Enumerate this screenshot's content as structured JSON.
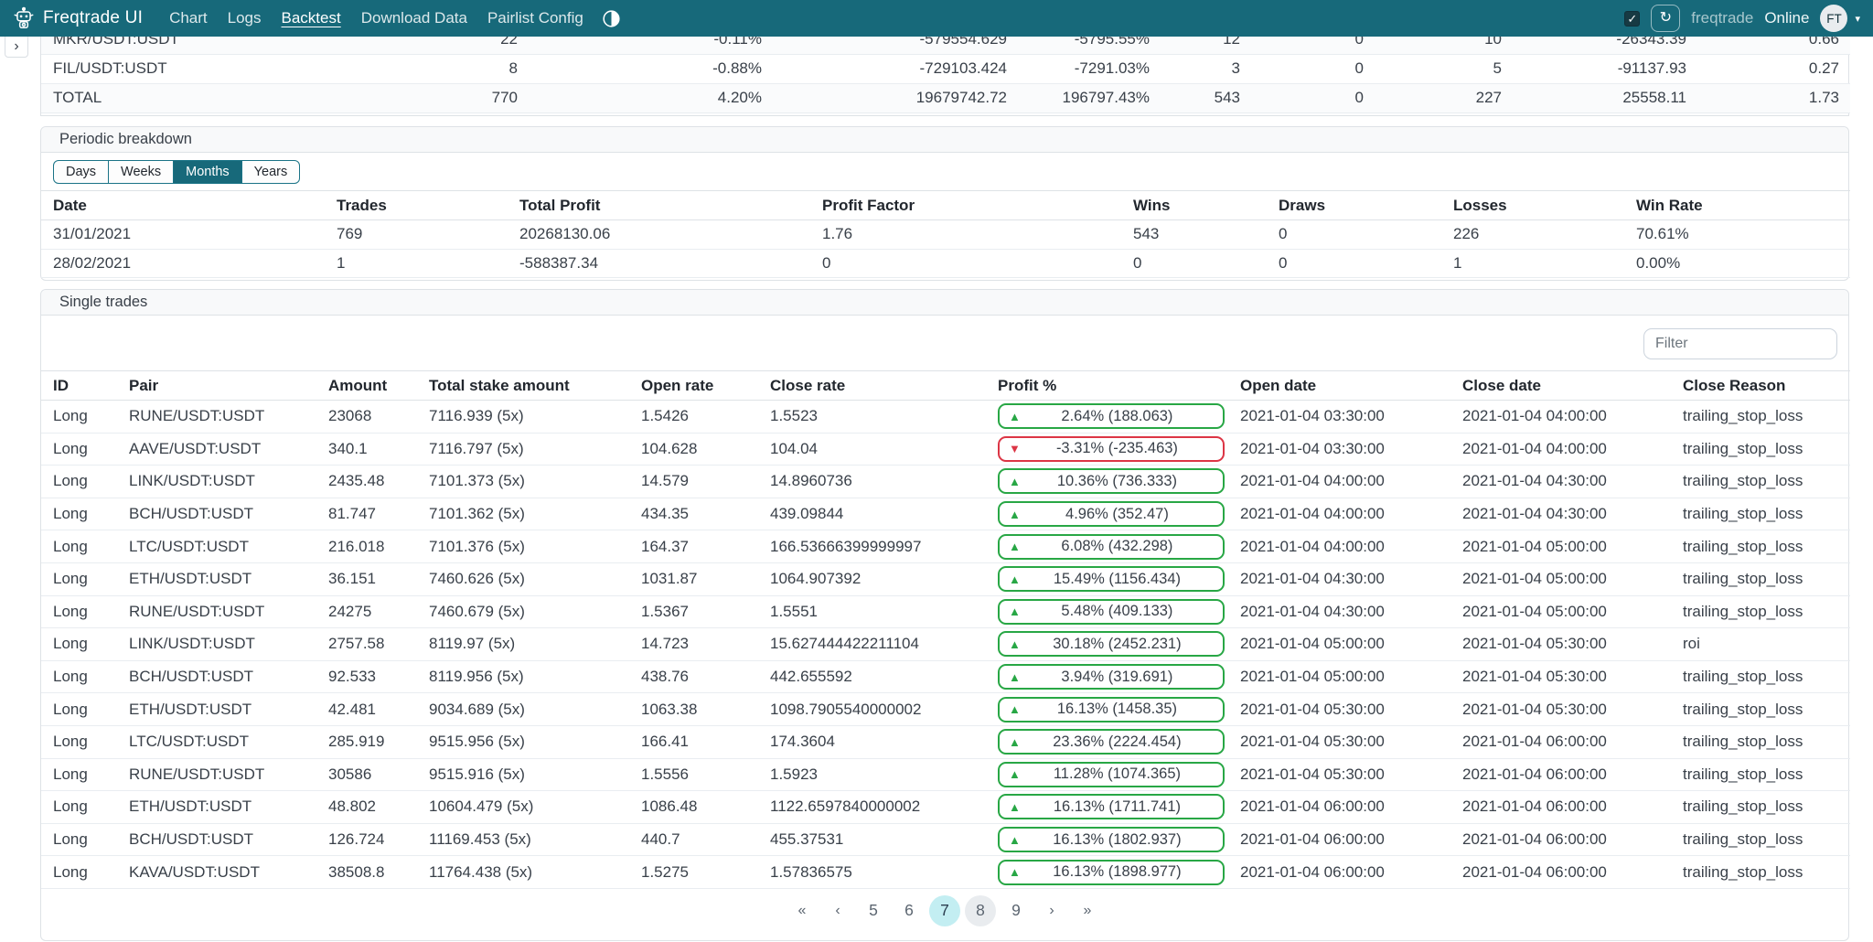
{
  "navbar": {
    "brand": "Freqtrade UI",
    "items": [
      {
        "label": "Chart",
        "active": false
      },
      {
        "label": "Logs",
        "active": false
      },
      {
        "label": "Backtest",
        "active": true
      },
      {
        "label": "Download Data",
        "active": false
      },
      {
        "label": "Pairlist Config",
        "active": false
      }
    ],
    "theme_icon": "circle-half-icon",
    "autorefresh_checked": true,
    "refresh_icon": "refresh-icon",
    "bot_name": "freqtrade",
    "status": "Online",
    "avatar_initials": "FT"
  },
  "pair_summary_table": {
    "rows": [
      [
        "MKR/USDT:USDT",
        "22",
        "-0.11%",
        "-579554.629",
        "-5795.55%",
        "12",
        "0",
        "10",
        "-26343.39",
        "0.66"
      ],
      [
        "FIL/USDT:USDT",
        "8",
        "-0.88%",
        "-729103.424",
        "-7291.03%",
        "3",
        "0",
        "5",
        "-91137.93",
        "0.27"
      ],
      [
        "TOTAL",
        "770",
        "4.20%",
        "19679742.72",
        "196797.43%",
        "543",
        "0",
        "227",
        "25558.11",
        "1.73"
      ]
    ]
  },
  "periodic_breakdown": {
    "title": "Periodic breakdown",
    "tabs": [
      "Days",
      "Weeks",
      "Months",
      "Years"
    ],
    "active_tab": "Months",
    "headers": [
      "Date",
      "Trades",
      "Total Profit",
      "Profit Factor",
      "Wins",
      "Draws",
      "Losses",
      "Win Rate"
    ],
    "rows": [
      [
        "31/01/2021",
        "769",
        "20268130.06",
        "1.76",
        "543",
        "0",
        "226",
        "70.61%"
      ],
      [
        "28/02/2021",
        "1",
        "-588387.34",
        "0",
        "0",
        "0",
        "1",
        "0.00%"
      ]
    ]
  },
  "single_trades": {
    "title": "Single trades",
    "filter_placeholder": "Filter",
    "headers": [
      "ID",
      "Pair",
      "Amount",
      "Total stake amount",
      "Open rate",
      "Close rate",
      "Profit %",
      "Open date",
      "Close date",
      "Close Reason"
    ],
    "rows": [
      [
        "Long",
        "RUNE/USDT:USDT",
        "23068",
        "7116.939 (5x)",
        "1.5426",
        "1.5523",
        {
          "dir": "up",
          "text": "2.64% (188.063)"
        },
        "2021-01-04 03:30:00",
        "2021-01-04 04:00:00",
        "trailing_stop_loss"
      ],
      [
        "Long",
        "AAVE/USDT:USDT",
        "340.1",
        "7116.797 (5x)",
        "104.628",
        "104.04",
        {
          "dir": "down",
          "text": "-3.31% (-235.463)"
        },
        "2021-01-04 03:30:00",
        "2021-01-04 04:00:00",
        "trailing_stop_loss"
      ],
      [
        "Long",
        "LINK/USDT:USDT",
        "2435.48",
        "7101.373 (5x)",
        "14.579",
        "14.8960736",
        {
          "dir": "up",
          "text": "10.36% (736.333)"
        },
        "2021-01-04 04:00:00",
        "2021-01-04 04:30:00",
        "trailing_stop_loss"
      ],
      [
        "Long",
        "BCH/USDT:USDT",
        "81.747",
        "7101.362 (5x)",
        "434.35",
        "439.09844",
        {
          "dir": "up",
          "text": "4.96% (352.47)"
        },
        "2021-01-04 04:00:00",
        "2021-01-04 04:30:00",
        "trailing_stop_loss"
      ],
      [
        "Long",
        "LTC/USDT:USDT",
        "216.018",
        "7101.376 (5x)",
        "164.37",
        "166.53666399999997",
        {
          "dir": "up",
          "text": "6.08% (432.298)"
        },
        "2021-01-04 04:00:00",
        "2021-01-04 05:00:00",
        "trailing_stop_loss"
      ],
      [
        "Long",
        "ETH/USDT:USDT",
        "36.151",
        "7460.626 (5x)",
        "1031.87",
        "1064.907392",
        {
          "dir": "up",
          "text": "15.49% (1156.434)"
        },
        "2021-01-04 04:30:00",
        "2021-01-04 05:00:00",
        "trailing_stop_loss"
      ],
      [
        "Long",
        "RUNE/USDT:USDT",
        "24275",
        "7460.679 (5x)",
        "1.5367",
        "1.5551",
        {
          "dir": "up",
          "text": "5.48% (409.133)"
        },
        "2021-01-04 04:30:00",
        "2021-01-04 05:00:00",
        "trailing_stop_loss"
      ],
      [
        "Long",
        "LINK/USDT:USDT",
        "2757.58",
        "8119.97 (5x)",
        "14.723",
        "15.627444422211104",
        {
          "dir": "up",
          "text": "30.18% (2452.231)"
        },
        "2021-01-04 05:00:00",
        "2021-01-04 05:30:00",
        "roi"
      ],
      [
        "Long",
        "BCH/USDT:USDT",
        "92.533",
        "8119.956 (5x)",
        "438.76",
        "442.655592",
        {
          "dir": "up",
          "text": "3.94% (319.691)"
        },
        "2021-01-04 05:00:00",
        "2021-01-04 05:30:00",
        "trailing_stop_loss"
      ],
      [
        "Long",
        "ETH/USDT:USDT",
        "42.481",
        "9034.689 (5x)",
        "1063.38",
        "1098.7905540000002",
        {
          "dir": "up",
          "text": "16.13% (1458.35)"
        },
        "2021-01-04 05:30:00",
        "2021-01-04 05:30:00",
        "trailing_stop_loss"
      ],
      [
        "Long",
        "LTC/USDT:USDT",
        "285.919",
        "9515.956 (5x)",
        "166.41",
        "174.3604",
        {
          "dir": "up",
          "text": "23.36% (2224.454)"
        },
        "2021-01-04 05:30:00",
        "2021-01-04 06:00:00",
        "trailing_stop_loss"
      ],
      [
        "Long",
        "RUNE/USDT:USDT",
        "30586",
        "9515.916 (5x)",
        "1.5556",
        "1.5923",
        {
          "dir": "up",
          "text": "11.28% (1074.365)"
        },
        "2021-01-04 05:30:00",
        "2021-01-04 06:00:00",
        "trailing_stop_loss"
      ],
      [
        "Long",
        "ETH/USDT:USDT",
        "48.802",
        "10604.479 (5x)",
        "1086.48",
        "1122.6597840000002",
        {
          "dir": "up",
          "text": "16.13% (1711.741)"
        },
        "2021-01-04 06:00:00",
        "2021-01-04 06:00:00",
        "trailing_stop_loss"
      ],
      [
        "Long",
        "BCH/USDT:USDT",
        "126.724",
        "11169.453 (5x)",
        "440.7",
        "455.37531",
        {
          "dir": "up",
          "text": "16.13% (1802.937)"
        },
        "2021-01-04 06:00:00",
        "2021-01-04 06:00:00",
        "trailing_stop_loss"
      ],
      [
        "Long",
        "KAVA/USDT:USDT",
        "38508.8",
        "11764.438 (5x)",
        "1.5275",
        "1.57836575",
        {
          "dir": "up",
          "text": "16.13% (1898.977)"
        },
        "2021-01-04 06:00:00",
        "2021-01-04 06:00:00",
        "trailing_stop_loss"
      ]
    ]
  },
  "pagination": {
    "items": [
      {
        "label": "«",
        "type": "first"
      },
      {
        "label": "‹",
        "type": "prev"
      },
      {
        "label": "5",
        "type": "page"
      },
      {
        "label": "6",
        "type": "page"
      },
      {
        "label": "7",
        "type": "page",
        "state": "active"
      },
      {
        "label": "8",
        "type": "page",
        "state": "hover"
      },
      {
        "label": "9",
        "type": "page"
      },
      {
        "label": "›",
        "type": "next"
      },
      {
        "label": "»",
        "type": "last"
      }
    ]
  },
  "colors": {
    "navbar_teal": "#17697a",
    "positive": "#28a745",
    "negative": "#dc3545",
    "pagination_active_bg": "#c3eef2",
    "pagination_hover_bg": "#e9ecef"
  }
}
